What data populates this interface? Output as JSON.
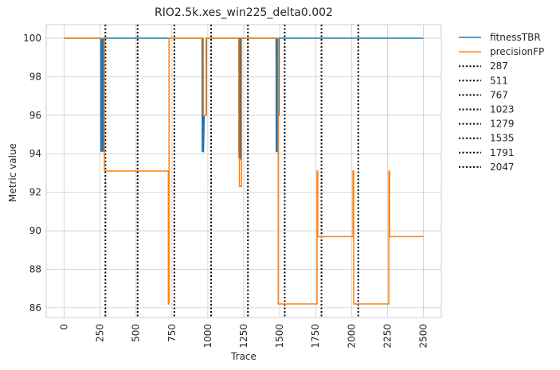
{
  "chart_data": {
    "type": "line",
    "title": "RIO2.5k.xes_win225_delta0.002",
    "xlabel": "Trace",
    "ylabel": "Metric value",
    "xlim": [
      -125,
      2625
    ],
    "ylim": [
      85.5,
      100.7
    ],
    "xticks": [
      0,
      250,
      500,
      750,
      1000,
      1250,
      1500,
      1750,
      2000,
      2250,
      2500
    ],
    "yticks": [
      86,
      88,
      90,
      92,
      94,
      96,
      98,
      100
    ],
    "grid": true,
    "legend_position": "outside-right",
    "series": [
      {
        "name": "fitnessTBR",
        "color": "#1f77b4",
        "style": "solid",
        "x": [
          0,
          255,
          256,
          257,
          258,
          259,
          260,
          261,
          262,
          263,
          264,
          265,
          266,
          267,
          268,
          269,
          270,
          271,
          272,
          273,
          274,
          275,
          276,
          277,
          278,
          279,
          280,
          960,
          961,
          962,
          963,
          964,
          965,
          966,
          967,
          968,
          969,
          970,
          975,
          980,
          985,
          990,
          991,
          1220,
          1221,
          1222,
          1223,
          1224,
          1225,
          1226,
          1227,
          1228,
          1229,
          1230,
          1475,
          1476,
          1477,
          1478,
          1479,
          1480,
          1481,
          1482,
          1483,
          1484,
          1485,
          1486,
          1488,
          1490,
          1495,
          1496,
          2500
        ],
        "y": [
          100,
          100,
          94.1,
          100,
          94.1,
          100,
          94.1,
          100,
          94.1,
          100,
          94.1,
          100,
          94.1,
          100,
          94.1,
          100,
          94.1,
          100,
          94.1,
          100,
          94.1,
          100,
          94.1,
          100,
          94.1,
          100,
          100,
          100,
          94.1,
          100,
          94.1,
          100,
          94.1,
          100,
          94.1,
          100,
          94.1,
          94.1,
          96,
          96,
          96,
          96,
          100,
          100,
          93.7,
          100,
          93.7,
          100,
          93.7,
          100,
          93.7,
          100,
          93.7,
          100,
          100,
          94.1,
          100,
          94.1,
          100,
          94.1,
          100,
          94.1,
          100,
          94.1,
          94.1,
          96,
          96,
          96,
          96,
          100,
          100
        ]
      },
      {
        "name": "precisionFP",
        "color": "#ff7f0e",
        "style": "solid",
        "x": [
          0,
          280,
          280,
          725,
          725,
          730,
          730,
          735,
          735,
          968,
          968,
          988,
          988,
          1215,
          1215,
          1220,
          1220,
          1235,
          1235,
          1245,
          1245,
          1490,
          1490,
          1495,
          1495,
          1760,
          1760,
          1765,
          1765,
          2010,
          2010,
          2015,
          2015,
          2260,
          2260,
          2265,
          2265,
          2500
        ],
        "y": [
          100,
          100,
          93.1,
          93.1,
          86.2,
          86.2,
          100,
          100,
          100,
          100,
          96,
          96,
          100,
          100,
          93.8,
          93.8,
          92.3,
          92.3,
          100,
          100,
          100,
          100,
          86.2,
          86.2,
          86.2,
          86.2,
          93.1,
          93.1,
          89.7,
          89.7,
          93.1,
          93.1,
          86.2,
          86.2,
          93.1,
          93.1,
          89.7,
          89.7
        ]
      }
    ],
    "vlines": [
      {
        "name": "287",
        "x": 287,
        "color": "#000000",
        "style": "dotted"
      },
      {
        "name": "511",
        "x": 511,
        "color": "#000000",
        "style": "dotted"
      },
      {
        "name": "767",
        "x": 767,
        "color": "#000000",
        "style": "dotted"
      },
      {
        "name": "1023",
        "x": 1023,
        "color": "#000000",
        "style": "dotted"
      },
      {
        "name": "1279",
        "x": 1279,
        "color": "#000000",
        "style": "dotted"
      },
      {
        "name": "1535",
        "x": 1535,
        "color": "#000000",
        "style": "dotted"
      },
      {
        "name": "1791",
        "x": 1791,
        "color": "#000000",
        "style": "dotted"
      },
      {
        "name": "2047",
        "x": 2047,
        "color": "#000000",
        "style": "dotted"
      }
    ]
  }
}
